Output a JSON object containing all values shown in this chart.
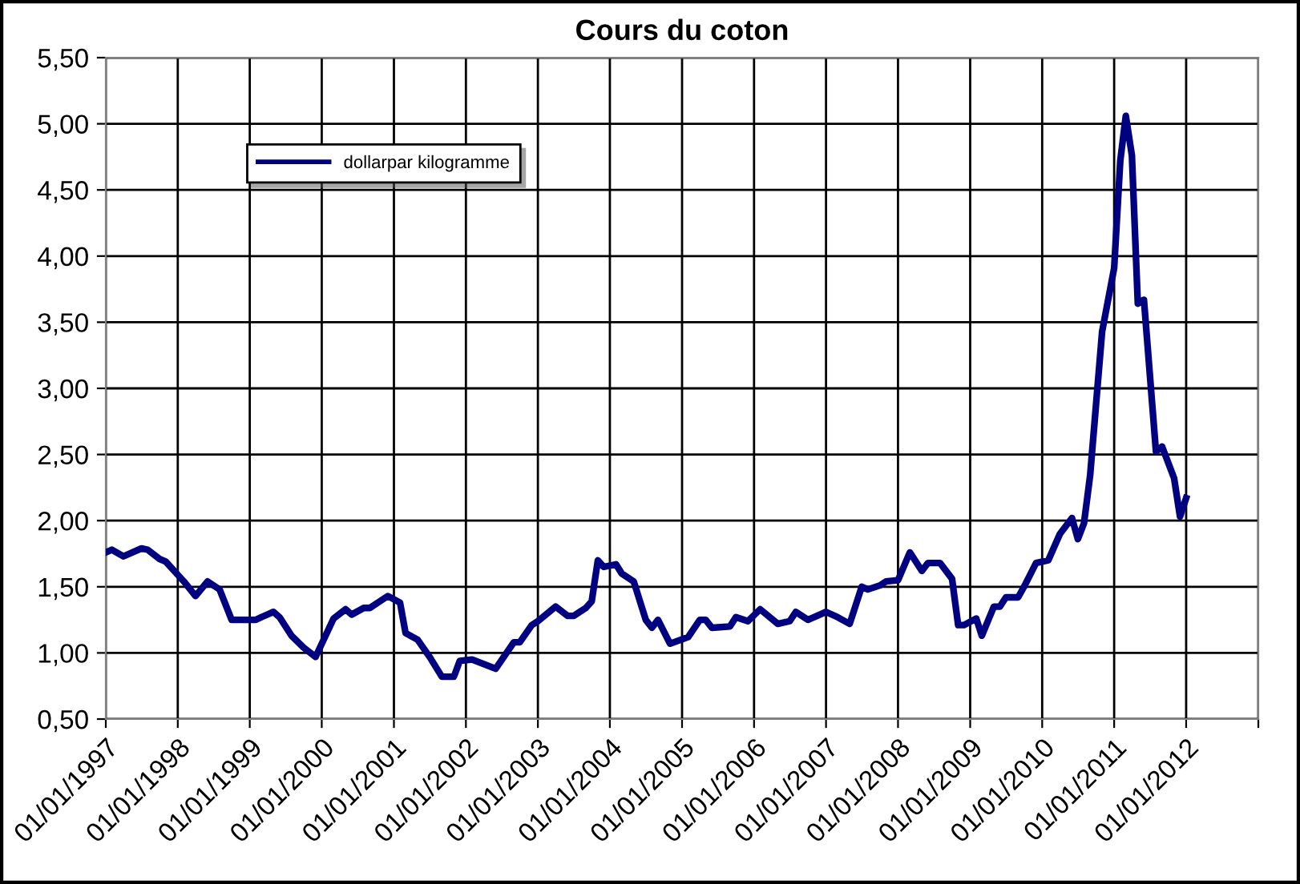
{
  "chart_data": {
    "type": "line",
    "title": "Cours du coton",
    "x": [
      "1997-01",
      "1997-02",
      "1997-04",
      "1997-07",
      "1997-08",
      "1997-10",
      "1997-11",
      "1998-02",
      "1998-04",
      "1998-06",
      "1998-08",
      "1998-10",
      "1999-02",
      "1999-03",
      "1999-05",
      "1999-06",
      "1999-08",
      "1999-10",
      "1999-12",
      "2000-03",
      "2000-05",
      "2000-06",
      "2000-08",
      "2000-09",
      "2000-12",
      "2001-02",
      "2001-03",
      "2001-05",
      "2001-07",
      "2001-09",
      "2001-11",
      "2001-12",
      "2002-02",
      "2002-06",
      "2002-09",
      "2002-10",
      "2002-12",
      "2003-01",
      "2003-04",
      "2003-06",
      "2003-07",
      "2003-09",
      "2003-10",
      "2003-11",
      "2003-12",
      "2004-02",
      "2004-03",
      "2004-05",
      "2004-07",
      "2004-08",
      "2004-09",
      "2004-11",
      "2005-02",
      "2005-04",
      "2005-05",
      "2005-06",
      "2005-09",
      "2005-10",
      "2005-12",
      "2006-02",
      "2006-05",
      "2006-07",
      "2006-08",
      "2006-10",
      "2007-01",
      "2007-03",
      "2007-05",
      "2007-07",
      "2007-08",
      "2007-10",
      "2007-11",
      "2008-01",
      "2008-03",
      "2008-05",
      "2008-06",
      "2008-08",
      "2008-10",
      "2008-11",
      "2008-12",
      "2009-02",
      "2009-03",
      "2009-05",
      "2009-06",
      "2009-07",
      "2009-09",
      "2009-10",
      "2009-12",
      "2010-02",
      "2010-04",
      "2010-06",
      "2010-07",
      "2010-08",
      "2010-09",
      "2010-11",
      "2011-01",
      "2011-02",
      "2011-03",
      "2011-04",
      "2011-05",
      "2011-06",
      "2011-08",
      "2011-09",
      "2011-11",
      "2011-12",
      "2012-01"
    ],
    "series": [
      {
        "name": "dollarpar kilogramme",
        "color": "#000080",
        "values": [
          1.76,
          1.78,
          1.73,
          1.79,
          1.78,
          1.71,
          1.69,
          1.54,
          1.43,
          1.54,
          1.48,
          1.25,
          1.25,
          1.27,
          1.31,
          1.27,
          1.13,
          1.04,
          0.97,
          1.26,
          1.33,
          1.29,
          1.34,
          1.34,
          1.43,
          1.38,
          1.15,
          1.1,
          0.97,
          0.82,
          0.82,
          0.94,
          0.95,
          0.88,
          1.08,
          1.08,
          1.21,
          1.24,
          1.35,
          1.28,
          1.28,
          1.34,
          1.39,
          1.7,
          1.65,
          1.67,
          1.6,
          1.54,
          1.25,
          1.19,
          1.25,
          1.07,
          1.12,
          1.25,
          1.25,
          1.19,
          1.2,
          1.27,
          1.24,
          1.33,
          1.22,
          1.24,
          1.31,
          1.25,
          1.31,
          1.27,
          1.22,
          1.5,
          1.48,
          1.51,
          1.54,
          1.55,
          1.76,
          1.62,
          1.68,
          1.68,
          1.56,
          1.21,
          1.21,
          1.26,
          1.13,
          1.35,
          1.35,
          1.42,
          1.42,
          1.5,
          1.68,
          1.7,
          1.9,
          2.02,
          1.86,
          1.98,
          2.34,
          3.43,
          3.91,
          4.72,
          5.06,
          4.76,
          3.64,
          3.67,
          2.52,
          2.56,
          2.32,
          2.03,
          2.17
        ]
      }
    ],
    "xlim": [
      "1997-01-01",
      "2013-01-01"
    ],
    "xticks": [
      {
        "value": "1997-01-01",
        "label": "01/01/1997"
      },
      {
        "value": "1998-01-01",
        "label": "01/01/1998"
      },
      {
        "value": "1999-01-01",
        "label": "01/01/1999"
      },
      {
        "value": "2000-01-01",
        "label": "01/01/2000"
      },
      {
        "value": "2001-01-01",
        "label": "01/01/2001"
      },
      {
        "value": "2002-01-01",
        "label": "01/01/2002"
      },
      {
        "value": "2003-01-01",
        "label": "01/01/2003"
      },
      {
        "value": "2004-01-01",
        "label": "01/01/2004"
      },
      {
        "value": "2005-01-01",
        "label": "01/01/2005"
      },
      {
        "value": "2006-01-01",
        "label": "01/01/2006"
      },
      {
        "value": "2007-01-01",
        "label": "01/01/2007"
      },
      {
        "value": "2008-01-01",
        "label": "01/01/2008"
      },
      {
        "value": "2009-01-01",
        "label": "01/01/2009"
      },
      {
        "value": "2010-01-01",
        "label": "01/01/2010"
      },
      {
        "value": "2011-01-01",
        "label": "01/01/2011"
      },
      {
        "value": "2012-01-01",
        "label": "01/01/2012"
      },
      {
        "value": "2013-01-01",
        "label": null
      }
    ],
    "ylim": [
      0.5,
      5.5
    ],
    "yticks": [
      {
        "value": 0.5,
        "label": "0,50"
      },
      {
        "value": 1.0,
        "label": "1,00"
      },
      {
        "value": 1.5,
        "label": "1,50"
      },
      {
        "value": 2.0,
        "label": "2,00"
      },
      {
        "value": 2.5,
        "label": "2,50"
      },
      {
        "value": 3.0,
        "label": "3,00"
      },
      {
        "value": 3.5,
        "label": "3,50"
      },
      {
        "value": 4.0,
        "label": "4,00"
      },
      {
        "value": 4.5,
        "label": "4,50"
      },
      {
        "value": 5.0,
        "label": "5,00"
      },
      {
        "value": 5.5,
        "label": "5,50"
      }
    ],
    "grid": true,
    "legend": "top left",
    "marker": "none",
    "line_style": "solid"
  }
}
